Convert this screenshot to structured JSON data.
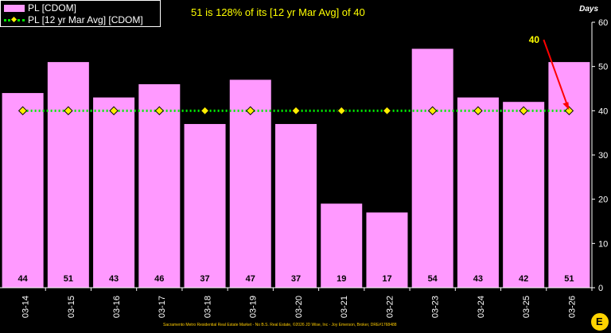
{
  "chart_data": {
    "type": "bar",
    "title": "51 is 128% of its [12 yr Mar Avg] of 40",
    "unit_label": "Days",
    "categories": [
      "03-14",
      "03-15",
      "03-16",
      "03-17",
      "03-18",
      "03-19",
      "03-20",
      "03-21",
      "03-22",
      "03-23",
      "03-24",
      "03-25",
      "03-26"
    ],
    "series": [
      {
        "name": "PL [CDOM]",
        "type": "bar",
        "values": [
          44,
          51,
          43,
          46,
          37,
          47,
          37,
          19,
          17,
          54,
          43,
          42,
          51
        ]
      },
      {
        "name": "PL [12 yr Mar Avg] [CDOM]",
        "type": "line",
        "values": [
          40,
          40,
          40,
          40,
          40,
          40,
          40,
          40,
          40,
          40,
          40,
          40,
          40
        ]
      }
    ],
    "ylim": [
      0,
      60
    ],
    "yticks": [
      "0",
      "10",
      "20",
      "30",
      "40",
      "50",
      "60"
    ],
    "callout": {
      "category": "03-26",
      "text": "40"
    },
    "legend_position": "top-left",
    "grid": false,
    "colors": {
      "bar": "#ff99ff",
      "line": "#00ee00",
      "marker": "#ffee00",
      "callout": "#ffff00",
      "arrow": "#ff0000",
      "background": "#000000"
    }
  },
  "footer": "Sacramento Metro Residential Real Estate Market - No B.S. Real Estate, ©2026 JD Wise, Inc - Joy Emerson, Broker, DRE#1768488",
  "logo_letter": "E"
}
